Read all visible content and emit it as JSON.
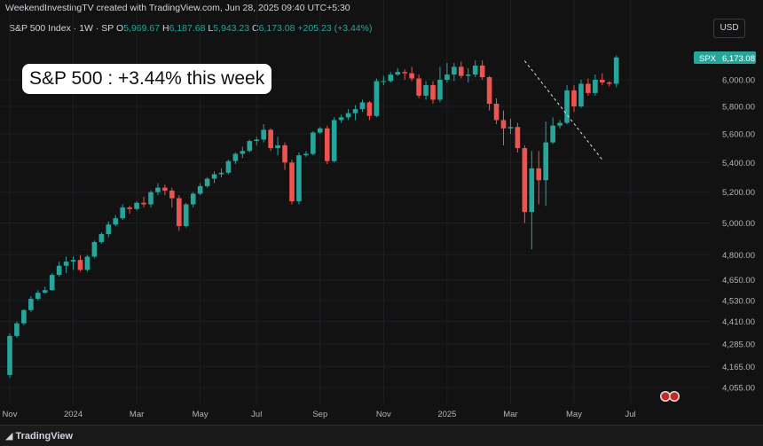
{
  "header": {
    "creator_line": "WeekendInvestingTV created with TradingView.com, Jun 28, 2025 09:40 UTC+5:30"
  },
  "symbol_bar": {
    "symbol": "S&P 500 Index · 1W · SP",
    "open_label": "O",
    "open": "5,969.67",
    "high_label": "H",
    "high": "6,187.68",
    "low_label": "L",
    "low": "5,943.23",
    "close_label": "C",
    "close": "6,173.08",
    "change": "+205.23 (+3.44%)"
  },
  "currency_button": "USD",
  "headline": "S&P 500 : +3.44% this week",
  "last_price_tag": {
    "symbol": "SPX",
    "price": "6,173.08"
  },
  "footer": {
    "brand": "TradingView"
  },
  "colors": {
    "up": "#26a69a",
    "down": "#ef5350",
    "background": "#121212",
    "grid": "#1c1f26",
    "trendline": "#e0e0e0"
  },
  "chart_data": {
    "type": "candlestick",
    "title": "S&P 500 Index",
    "interval": "1W",
    "y_scale": "log",
    "y_ticks": [
      4055,
      4165,
      4285,
      4410,
      4530,
      4650,
      4800,
      5000,
      5200,
      5400,
      5600,
      5800,
      6000
    ],
    "y_tick_labels": [
      "4,055.00",
      "4,165.00",
      "4,285.00",
      "4,410.00",
      "4,530.00",
      "4,650.00",
      "4,800.00",
      "5,000.00",
      "5,200.00",
      "5,400.00",
      "5,600.00",
      "5,800.00",
      "6,000.00"
    ],
    "x_labels": [
      {
        "label": "Nov",
        "index": 0
      },
      {
        "label": "2024",
        "index": 9
      },
      {
        "label": "Mar",
        "index": 18
      },
      {
        "label": "May",
        "index": 27
      },
      {
        "label": "Jul",
        "index": 35
      },
      {
        "label": "Sep",
        "index": 44
      },
      {
        "label": "Nov",
        "index": 53
      },
      {
        "label": "2025",
        "index": 62
      },
      {
        "label": "Mar",
        "index": 71
      },
      {
        "label": "May",
        "index": 80
      },
      {
        "label": "Jul",
        "index": 88
      }
    ],
    "ohlc": [
      [
        4120,
        4345,
        4105,
        4330
      ],
      [
        4330,
        4410,
        4320,
        4400
      ],
      [
        4400,
        4480,
        4390,
        4475
      ],
      [
        4475,
        4555,
        4465,
        4540
      ],
      [
        4540,
        4590,
        4530,
        4575
      ],
      [
        4575,
        4610,
        4570,
        4590
      ],
      [
        4590,
        4690,
        4585,
        4680
      ],
      [
        4680,
        4760,
        4670,
        4735
      ],
      [
        4735,
        4790,
        4690,
        4760
      ],
      [
        4760,
        4790,
        4710,
        4770
      ],
      [
        4770,
        4800,
        4700,
        4710
      ],
      [
        4710,
        4800,
        4700,
        4790
      ],
      [
        4790,
        4890,
        4780,
        4880
      ],
      [
        4880,
        4940,
        4870,
        4930
      ],
      [
        4930,
        5010,
        4910,
        4990
      ],
      [
        4990,
        5050,
        4980,
        5030
      ],
      [
        5030,
        5120,
        5020,
        5100
      ],
      [
        5100,
        5110,
        5060,
        5090
      ],
      [
        5090,
        5140,
        5080,
        5130
      ],
      [
        5130,
        5170,
        5100,
        5120
      ],
      [
        5120,
        5210,
        5100,
        5200
      ],
      [
        5200,
        5260,
        5180,
        5230
      ],
      [
        5230,
        5250,
        5180,
        5210
      ],
      [
        5210,
        5230,
        5100,
        5160
      ],
      [
        5160,
        5180,
        4950,
        4980
      ],
      [
        4980,
        5130,
        4970,
        5120
      ],
      [
        5120,
        5200,
        5100,
        5190
      ],
      [
        5190,
        5260,
        5180,
        5240
      ],
      [
        5240,
        5300,
        5230,
        5290
      ],
      [
        5290,
        5340,
        5260,
        5320
      ],
      [
        5320,
        5360,
        5300,
        5330
      ],
      [
        5330,
        5420,
        5320,
        5410
      ],
      [
        5410,
        5470,
        5390,
        5460
      ],
      [
        5460,
        5510,
        5430,
        5480
      ],
      [
        5480,
        5560,
        5470,
        5550
      ],
      [
        5550,
        5580,
        5520,
        5560
      ],
      [
        5560,
        5670,
        5540,
        5630
      ],
      [
        5630,
        5640,
        5480,
        5500
      ],
      [
        5500,
        5580,
        5450,
        5520
      ],
      [
        5520,
        5540,
        5350,
        5400
      ],
      [
        5400,
        5420,
        5120,
        5140
      ],
      [
        5140,
        5470,
        5120,
        5450
      ],
      [
        5450,
        5480,
        5440,
        5460
      ],
      [
        5460,
        5620,
        5450,
        5610
      ],
      [
        5610,
        5650,
        5600,
        5640
      ],
      [
        5640,
        5660,
        5390,
        5410
      ],
      [
        5410,
        5720,
        5400,
        5700
      ],
      [
        5700,
        5740,
        5680,
        5720
      ],
      [
        5720,
        5780,
        5700,
        5750
      ],
      [
        5750,
        5810,
        5700,
        5780
      ],
      [
        5780,
        5850,
        5760,
        5830
      ],
      [
        5830,
        5840,
        5700,
        5730
      ],
      [
        5730,
        6010,
        5720,
        5990
      ],
      [
        5990,
        6030,
        5960,
        5990
      ],
      [
        5990,
        6060,
        5980,
        6040
      ],
      [
        6040,
        6090,
        6030,
        6060
      ],
      [
        6060,
        6080,
        6000,
        6050
      ],
      [
        6050,
        6100,
        5990,
        6010
      ],
      [
        6010,
        6040,
        5860,
        5880
      ],
      [
        5880,
        5990,
        5850,
        5960
      ],
      [
        5960,
        5990,
        5820,
        5850
      ],
      [
        5850,
        6100,
        5830,
        6000
      ],
      [
        6000,
        6130,
        5980,
        6040
      ],
      [
        6040,
        6130,
        5990,
        6100
      ],
      [
        6100,
        6140,
        6010,
        6030
      ],
      [
        6030,
        6090,
        5980,
        6040
      ],
      [
        6040,
        6150,
        6020,
        6110
      ],
      [
        6110,
        6150,
        6000,
        6020
      ],
      [
        6020,
        6030,
        5770,
        5820
      ],
      [
        5820,
        5860,
        5670,
        5700
      ],
      [
        5700,
        5770,
        5520,
        5640
      ],
      [
        5640,
        5710,
        5600,
        5650
      ],
      [
        5650,
        5680,
        5470,
        5500
      ],
      [
        5500,
        5520,
        5000,
        5070
      ],
      [
        5070,
        5480,
        4835,
        5360
      ],
      [
        5360,
        5480,
        5120,
        5280
      ],
      [
        5280,
        5690,
        5110,
        5540
      ],
      [
        5540,
        5720,
        5530,
        5660
      ],
      [
        5660,
        5700,
        5640,
        5680
      ],
      [
        5680,
        5960,
        5670,
        5920
      ],
      [
        5920,
        5960,
        5760,
        5800
      ],
      [
        5800,
        6000,
        5790,
        5970
      ],
      [
        5970,
        6010,
        5880,
        5900
      ],
      [
        5900,
        6040,
        5880,
        6000
      ],
      [
        6000,
        6050,
        5960,
        5980
      ],
      [
        5980,
        5990,
        5950,
        5970
      ],
      [
        5970,
        6187.68,
        5943.23,
        6173.08
      ]
    ]
  }
}
